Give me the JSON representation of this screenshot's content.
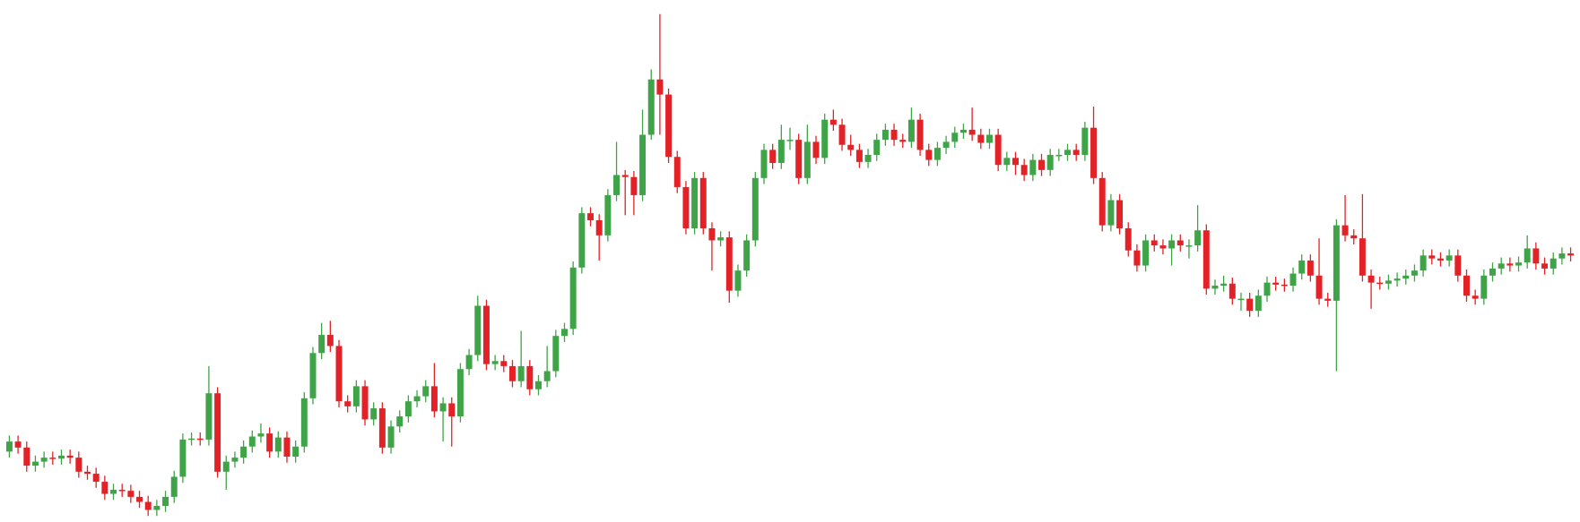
{
  "chart_data": {
    "type": "candlestick",
    "ylim": [
      0,
      519
    ],
    "up_color": "#3ea447",
    "down_color": "#e32227",
    "open": [
      70,
      80,
      74,
      56,
      60,
      64,
      63,
      66,
      64,
      50,
      48,
      40,
      28,
      32,
      31,
      25,
      20,
      12,
      16,
      25,
      45,
      82,
      83,
      82,
      128,
      50,
      60,
      64,
      75,
      85,
      88,
      70,
      84,
      65,
      75,
      123,
      168,
      186,
      175,
      120,
      115,
      135,
      102,
      113,
      74,
      95,
      105,
      120,
      125,
      135,
      110,
      118,
      105,
      152,
      166,
      215,
      157,
      160,
      155,
      140,
      155,
      132,
      140,
      150,
      185,
      192,
      253,
      307,
      300,
      285,
      325,
      345,
      343,
      325,
      385,
      440,
      425,
      363,
      333,
      292,
      342,
      292,
      280,
      283,
      230,
      250,
      280,
      342,
      370,
      357,
      380,
      380,
      342,
      378,
      362,
      400,
      395,
      375,
      370,
      358,
      365,
      380,
      390,
      380,
      378,
      400,
      370,
      360,
      372,
      378,
      387,
      390,
      385,
      377,
      385,
      355,
      362,
      355,
      345,
      360,
      350,
      365,
      365,
      370,
      365,
      392,
      342,
      295,
      320,
      292,
      270,
      255,
      280,
      275,
      272,
      280,
      275,
      275,
      290,
      232,
      235,
      237,
      222,
      222,
      210,
      225,
      238,
      236,
      235,
      247,
      260,
      245,
      222,
      220,
      295,
      285,
      282,
      245,
      238,
      237,
      240,
      242,
      245,
      250,
      265,
      262,
      260,
      265,
      245,
      225,
      222,
      245,
      252,
      257,
      255,
      258,
      272,
      257,
      252,
      262,
      267
    ],
    "high": [
      86,
      86,
      80,
      66,
      70,
      70,
      72,
      72,
      70,
      56,
      54,
      46,
      38,
      38,
      37,
      31,
      26,
      22,
      31,
      51,
      88,
      89,
      89,
      155,
      134,
      66,
      70,
      81,
      91,
      98,
      94,
      90,
      90,
      81,
      129,
      174,
      198,
      200,
      181,
      126,
      141,
      141,
      119,
      119,
      101,
      111,
      126,
      131,
      141,
      158,
      124,
      124,
      158,
      172,
      225,
      221,
      166,
      166,
      161,
      190,
      161,
      146,
      175,
      191,
      198,
      259,
      313,
      313,
      306,
      331,
      378,
      350,
      349,
      410,
      450,
      505,
      431,
      369,
      339,
      348,
      348,
      298,
      289,
      289,
      256,
      286,
      348,
      376,
      376,
      395,
      392,
      386,
      395,
      384,
      406,
      410,
      401,
      385,
      376,
      371,
      386,
      396,
      396,
      386,
      412,
      406,
      376,
      378,
      384,
      393,
      396,
      412,
      391,
      391,
      391,
      368,
      368,
      361,
      366,
      366,
      371,
      371,
      376,
      376,
      398,
      413,
      348,
      326,
      326,
      298,
      276,
      286,
      286,
      281,
      286,
      286,
      281,
      315,
      296,
      241,
      245,
      243,
      228,
      228,
      231,
      244,
      244,
      242,
      253,
      266,
      266,
      282,
      228,
      301,
      325,
      291,
      326,
      251,
      244,
      246,
      248,
      251,
      256,
      271,
      271,
      268,
      271,
      271,
      251,
      231,
      251,
      258,
      263,
      263,
      264,
      285,
      278,
      263,
      268,
      273,
      273
    ],
    "low": [
      64,
      68,
      50,
      50,
      54,
      57,
      57,
      58,
      44,
      42,
      34,
      22,
      22,
      25,
      19,
      14,
      6,
      6,
      10,
      19,
      39,
      76,
      76,
      76,
      44,
      32,
      54,
      58,
      69,
      79,
      64,
      64,
      59,
      59,
      69,
      117,
      162,
      169,
      114,
      109,
      109,
      96,
      96,
      68,
      68,
      89,
      99,
      114,
      119,
      104,
      80,
      75,
      99,
      146,
      160,
      151,
      151,
      149,
      134,
      134,
      126,
      126,
      134,
      144,
      179,
      186,
      247,
      294,
      260,
      279,
      319,
      305,
      305,
      319,
      380,
      385,
      357,
      327,
      286,
      286,
      286,
      250,
      274,
      218,
      224,
      244,
      274,
      336,
      351,
      351,
      370,
      336,
      336,
      356,
      356,
      389,
      369,
      364,
      352,
      352,
      359,
      374,
      374,
      372,
      372,
      364,
      354,
      354,
      366,
      372,
      381,
      379,
      371,
      371,
      349,
      349,
      345,
      339,
      339,
      344,
      344,
      359,
      359,
      359,
      359,
      336,
      289,
      289,
      286,
      264,
      249,
      249,
      269,
      266,
      255,
      269,
      262,
      269,
      226,
      226,
      229,
      216,
      210,
      204,
      204,
      219,
      230,
      229,
      229,
      241,
      239,
      216,
      214,
      150,
      279,
      276,
      239,
      212,
      231,
      231,
      234,
      236,
      239,
      244,
      256,
      254,
      254,
      239,
      219,
      216,
      216,
      239,
      246,
      249,
      249,
      252,
      251,
      246,
      246,
      256,
      259
    ],
    "close": [
      80,
      74,
      56,
      60,
      64,
      63,
      66,
      64,
      50,
      48,
      40,
      28,
      32,
      31,
      25,
      20,
      12,
      16,
      25,
      45,
      82,
      83,
      82,
      128,
      50,
      60,
      64,
      75,
      85,
      88,
      70,
      84,
      65,
      75,
      123,
      168,
      186,
      175,
      120,
      115,
      135,
      102,
      113,
      74,
      95,
      105,
      120,
      125,
      135,
      110,
      118,
      105,
      152,
      166,
      215,
      157,
      160,
      155,
      140,
      155,
      132,
      140,
      150,
      185,
      192,
      253,
      307,
      300,
      285,
      325,
      345,
      343,
      325,
      385,
      440,
      425,
      363,
      333,
      292,
      342,
      292,
      280,
      283,
      230,
      250,
      280,
      342,
      370,
      357,
      380,
      380,
      342,
      378,
      362,
      400,
      395,
      375,
      370,
      358,
      365,
      380,
      390,
      380,
      378,
      400,
      370,
      360,
      372,
      378,
      387,
      390,
      385,
      377,
      385,
      355,
      362,
      355,
      345,
      360,
      350,
      365,
      365,
      370,
      365,
      392,
      342,
      295,
      320,
      292,
      270,
      255,
      280,
      275,
      272,
      280,
      275,
      275,
      290,
      232,
      235,
      237,
      222,
      222,
      210,
      225,
      238,
      236,
      235,
      247,
      260,
      245,
      222,
      220,
      295,
      285,
      282,
      245,
      238,
      237,
      240,
      242,
      245,
      250,
      265,
      262,
      260,
      265,
      245,
      225,
      222,
      245,
      252,
      257,
      255,
      258,
      272,
      257,
      252,
      262,
      267,
      265
    ]
  }
}
